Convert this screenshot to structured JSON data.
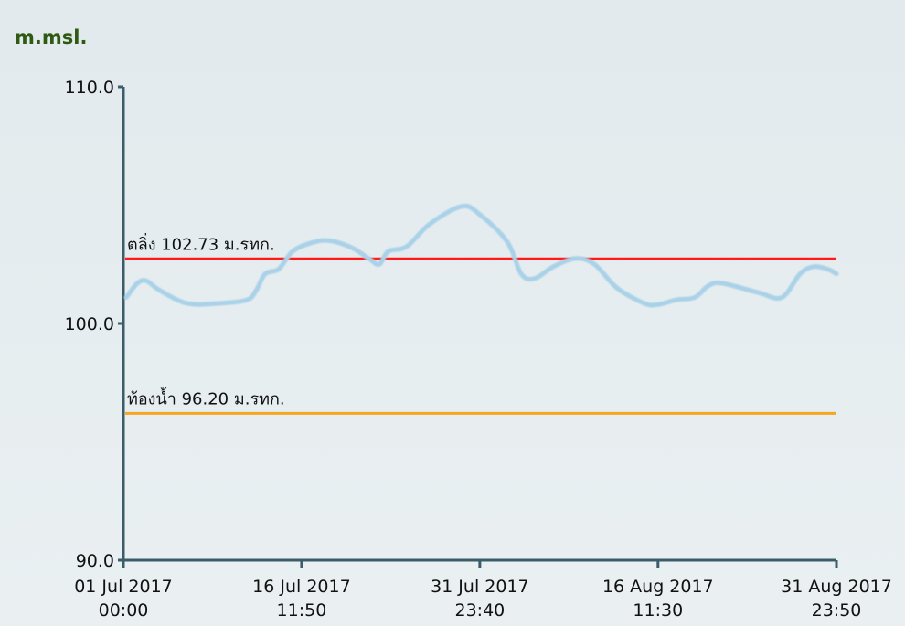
{
  "chart_data": {
    "type": "line",
    "y_axis_label": "m.msl.",
    "xlim": [
      "2017-07-01T00:00",
      "2017-08-31T23:50"
    ],
    "xticks": [
      {
        "value": "2017-07-01T00:00",
        "label": [
          "01 Jul 2017",
          "00:00"
        ]
      },
      {
        "value": "2017-07-16T11:50",
        "label": [
          "16 Jul 2017",
          "11:50"
        ]
      },
      {
        "value": "2017-07-31T23:40",
        "label": [
          "31 Jul 2017",
          "23:40"
        ]
      },
      {
        "value": "2017-08-16T11:30",
        "label": [
          "16 Aug 2017",
          "11:30"
        ]
      },
      {
        "value": "2017-08-31T23:50",
        "label": [
          "31 Aug 2017",
          "23:50"
        ]
      }
    ],
    "ylim": [
      90,
      110
    ],
    "yticks": [
      {
        "value": 90,
        "label": "90.0"
      },
      {
        "value": 100,
        "label": "100.0"
      },
      {
        "value": 110,
        "label": "110.0"
      }
    ],
    "x": [
      "2017-07-01T06:00",
      "2017-07-02T05:00",
      "2017-07-03T00:00",
      "2017-07-04T04:00",
      "2017-07-06T13:00",
      "2017-07-09T08:00",
      "2017-07-11T18:00",
      "2017-07-12T13:00",
      "2017-07-13T08:00",
      "2017-07-14T12:00",
      "2017-07-15T17:00",
      "2017-07-17T07:00",
      "2017-07-18T21:00",
      "2017-07-20T21:00",
      "2017-07-22T11:00",
      "2017-07-23T06:00",
      "2017-07-24T01:00",
      "2017-07-25T15:00",
      "2017-07-27T15:00",
      "2017-07-30T10:00",
      "2017-08-01T00:00",
      "2017-08-03T09:00",
      "2017-08-04T14:00",
      "2017-08-05T18:00",
      "2017-08-07T09:00",
      "2017-08-09T08:00",
      "2017-08-10T23:00",
      "2017-08-12T22:00",
      "2017-08-15T07:00",
      "2017-08-16T12:00",
      "2017-08-18T02:00",
      "2017-08-19T16:00",
      "2017-08-20T21:00",
      "2017-08-22T02:00",
      "2017-08-25T06:00",
      "2017-08-27T06:00",
      "2017-08-28T20:00",
      "2017-08-30T00:00",
      "2017-08-31T05:00",
      "2017-08-31T23:50"
    ],
    "series": [
      {
        "color": "#a9d1e8",
        "values": [
          101.1,
          101.7,
          101.8,
          101.4,
          100.85,
          100.85,
          101.0,
          101.4,
          102.1,
          102.3,
          103.05,
          103.4,
          103.5,
          103.2,
          102.7,
          102.5,
          103.05,
          103.25,
          104.2,
          104.95,
          104.6,
          103.45,
          102.1,
          101.9,
          102.4,
          102.75,
          102.5,
          101.5,
          100.85,
          100.8,
          101.0,
          101.1,
          101.6,
          101.7,
          101.3,
          101.1,
          102.1,
          102.4,
          102.3,
          102.1
        ]
      }
    ],
    "reference_lines": [
      {
        "label": "ตลิ่ง 102.73 ม.รทก.",
        "value": 102.73,
        "color": "#ff1a1a"
      },
      {
        "label": "ท้องน้ำ 96.20 ม.รทก.",
        "value": 96.2,
        "color": "#f5a623"
      }
    ]
  }
}
